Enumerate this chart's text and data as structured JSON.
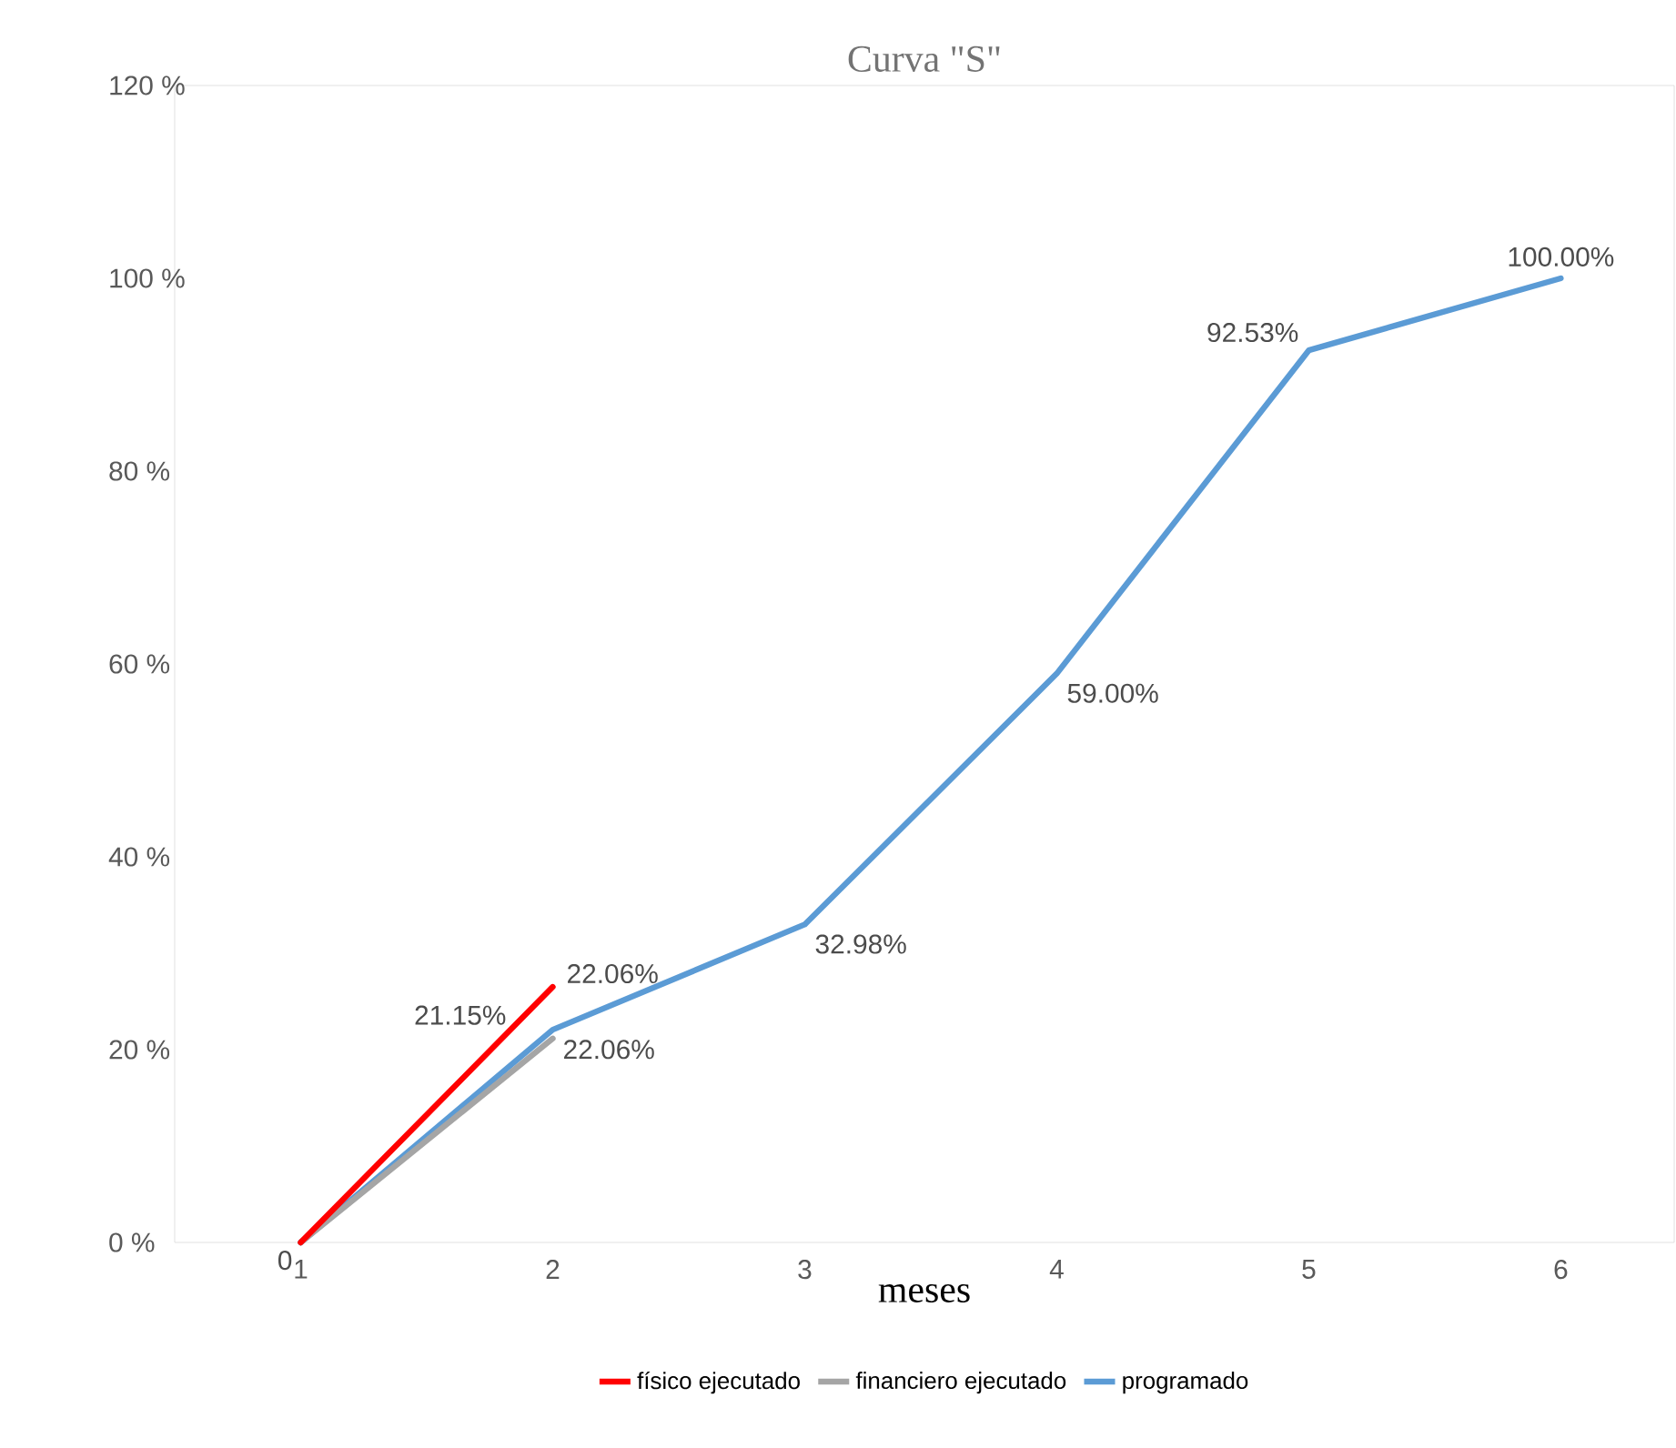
{
  "chart_data": {
    "type": "line",
    "title": "Curva \"S\"",
    "xlabel": "meses",
    "categories": [
      "1",
      "2",
      "3",
      "4",
      "5",
      "6"
    ],
    "series": [
      {
        "name": "programado",
        "color": "#5b9bd5",
        "values": [
          0,
          22.06,
          32.98,
          59.0,
          92.53,
          100.0
        ],
        "value_labels": [
          null,
          "22.06%",
          "32.98%",
          "59.00%",
          "92.53%",
          "100.00%"
        ]
      },
      {
        "name": "financiero ejecutado",
        "color": "#a5a5a5",
        "values": [
          0,
          21.15,
          null,
          null,
          null,
          null
        ],
        "value_labels": [
          null,
          "21.15%",
          null,
          null,
          null,
          null
        ]
      },
      {
        "name": "físico ejecutado",
        "color": "#ff0000",
        "values": [
          0,
          26.5,
          null,
          null,
          null,
          null
        ],
        "value_labels": [
          "0",
          null,
          null,
          null,
          null,
          null
        ]
      }
    ],
    "annotations": [
      {
        "text": "22.06%",
        "x": "2",
        "y": 22.06
      }
    ],
    "ylim": [
      0,
      120
    ],
    "yticks": [
      {
        "value": 0,
        "label": "0 %"
      },
      {
        "value": 20,
        "label": "20 %"
      },
      {
        "value": 40,
        "label": "40 %"
      },
      {
        "value": 60,
        "label": "60 %"
      },
      {
        "value": 80,
        "label": "80 %"
      },
      {
        "value": 100,
        "label": "100 %"
      },
      {
        "value": 120,
        "label": "120 %"
      }
    ],
    "grid": false,
    "legend": "bottom",
    "marker": "none",
    "line_style": "solid"
  }
}
